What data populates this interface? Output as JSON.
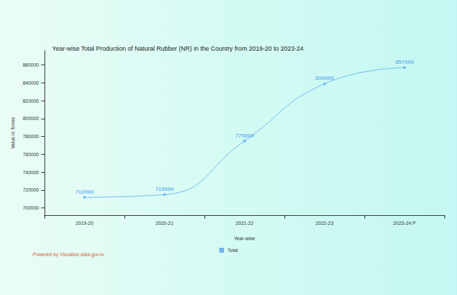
{
  "chart_data": {
    "type": "line",
    "title": "Year-wise Total Production of Natural Rubber (NR) in the Country from 2019-20 to 2023-24",
    "x_label": "Year-wise",
    "y_label": "Value in Tonne",
    "footer": "Powered by Visualize.data.gov.in",
    "categories": [
      "2019-20",
      "2020-21",
      "2021-22",
      "2022-23",
      "2023-24 P"
    ],
    "series": [
      {
        "name": "Total",
        "color": "#6fb7f0",
        "values": [
          712000,
          715000,
          775000,
          839000,
          857000
        ]
      }
    ],
    "ylim": [
      692000,
      876000
    ],
    "yticks": [
      700000,
      720000,
      740000,
      760000,
      780000,
      800000,
      820000,
      840000,
      860000
    ],
    "grid": false,
    "legend": "bottom",
    "data_labels": true,
    "line_style": "smooth",
    "marker": "circle"
  }
}
